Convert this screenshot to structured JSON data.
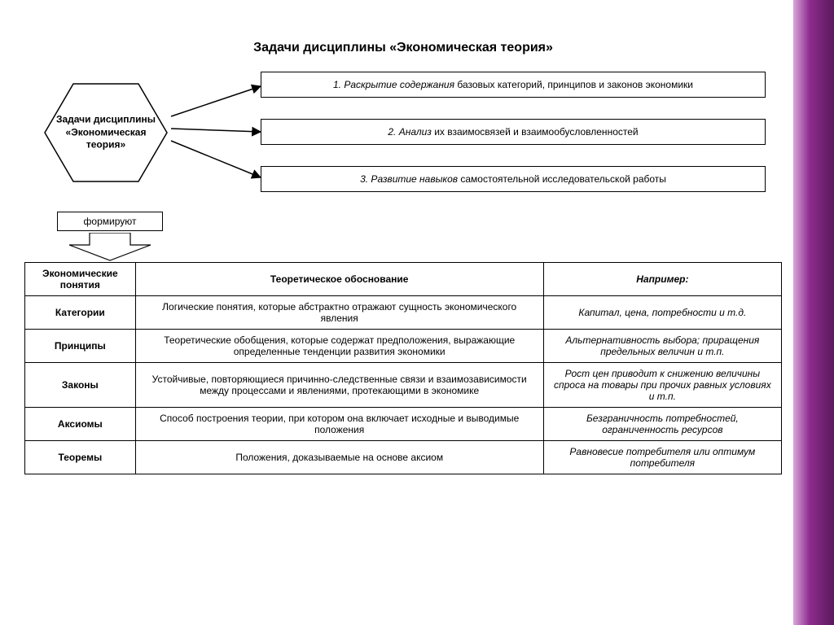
{
  "title": "Задачи дисциплины «Экономическая теория»",
  "hexagon_label": "Задачи дисциплины «Экономическая теория»",
  "tasks": [
    {
      "lead": "1. Раскрытие содержания",
      "rest": " базовых категорий, принципов и законов экономики"
    },
    {
      "lead": "2. Анализ",
      "rest": " их взаимосвязей и взаимообусловленностей"
    },
    {
      "lead": "3. Развитие навыков",
      "rest": " самостоятельной исследовательской работы"
    }
  ],
  "form_label": "формируют",
  "table": {
    "headers": [
      "Экономические понятия",
      "Теоретическое обоснование",
      "Например:"
    ],
    "rows": [
      {
        "concept": "Категории",
        "desc": "Логические понятия, которые абстрактно отражают сущность экономического явления",
        "example": "Капитал, цена, потребности и т.д."
      },
      {
        "concept": "Принципы",
        "desc": "Теоретические обобщения, которые содержат предположения, выражающие определенные тенденции развития экономики",
        "example": "Альтернативность выбора; приращения предельных величин и т.п."
      },
      {
        "concept": "Законы",
        "desc": "Устойчивые, повторяющиеся причинно-следственные связи и взаимозависимости между процессами и явлениями, протекающими в экономике",
        "example": "Рост цен приводит к снижению величины спроса на товары при прочих равных условиях и т.п."
      },
      {
        "concept": "Аксиомы",
        "desc": "Способ построения теории, при котором она включает исходные и выводимые положения",
        "example": "Безграничность потребностей, ограниченность ресурсов"
      },
      {
        "concept": "Теоремы",
        "desc": "Положения, доказываемые на основе аксиом",
        "example": "Равновесие потребителя или оптимум потребителя"
      }
    ]
  },
  "colors": {
    "border": "#000000",
    "text": "#000000",
    "side_gradient_start": "#d9a8d9",
    "side_gradient_mid": "#8e2b8e",
    "side_gradient_end": "#5a1a5a",
    "background": "#ffffff"
  },
  "layout": {
    "slide_width": 1024,
    "slide_height": 768,
    "side_strip_width": 50
  }
}
